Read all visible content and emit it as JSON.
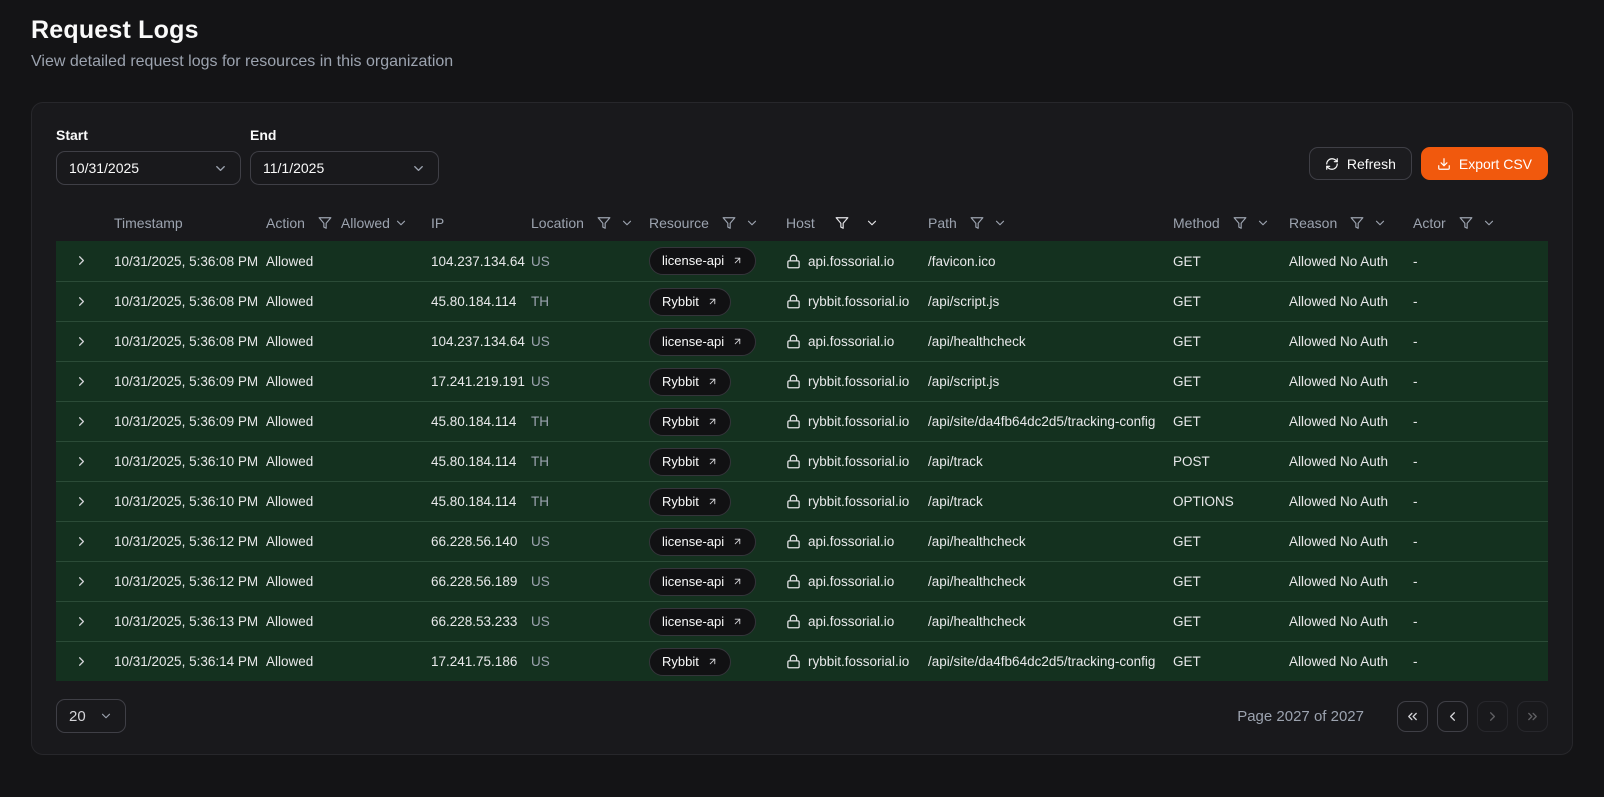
{
  "page": {
    "title": "Request Logs",
    "subtitle": "View detailed request logs for resources in this organization"
  },
  "filters": {
    "start": {
      "label": "Start",
      "value": "10/31/2025"
    },
    "end": {
      "label": "End",
      "value": "11/1/2025"
    }
  },
  "actions": {
    "refresh_label": "Refresh",
    "export_label": "Export CSV"
  },
  "table": {
    "columns": [
      {
        "key": "timestamp",
        "label": "Timestamp",
        "filterable": false
      },
      {
        "key": "action",
        "label": "Action",
        "filterable": true,
        "filter_value": "Allowed"
      },
      {
        "key": "ip",
        "label": "IP",
        "filterable": false
      },
      {
        "key": "location",
        "label": "Location",
        "filterable": true
      },
      {
        "key": "resource",
        "label": "Resource",
        "filterable": true
      },
      {
        "key": "host",
        "label": "Host",
        "filterable": true
      },
      {
        "key": "path",
        "label": "Path",
        "filterable": true
      },
      {
        "key": "method",
        "label": "Method",
        "filterable": true
      },
      {
        "key": "reason",
        "label": "Reason",
        "filterable": true
      },
      {
        "key": "actor",
        "label": "Actor",
        "filterable": true
      }
    ],
    "rows": [
      {
        "timestamp": "10/31/2025, 5:36:08 PM",
        "action": "Allowed",
        "ip": "104.237.134.64",
        "location": "US",
        "resource": "license-api",
        "host": "api.fossorial.io",
        "path": "/favicon.ico",
        "method": "GET",
        "reason": "Allowed No Auth",
        "actor": "-"
      },
      {
        "timestamp": "10/31/2025, 5:36:08 PM",
        "action": "Allowed",
        "ip": "45.80.184.114",
        "location": "TH",
        "resource": "Rybbit",
        "host": "rybbit.fossorial.io",
        "path": "/api/script.js",
        "method": "GET",
        "reason": "Allowed No Auth",
        "actor": "-"
      },
      {
        "timestamp": "10/31/2025, 5:36:08 PM",
        "action": "Allowed",
        "ip": "104.237.134.64",
        "location": "US",
        "resource": "license-api",
        "host": "api.fossorial.io",
        "path": "/api/healthcheck",
        "method": "GET",
        "reason": "Allowed No Auth",
        "actor": "-"
      },
      {
        "timestamp": "10/31/2025, 5:36:09 PM",
        "action": "Allowed",
        "ip": "17.241.219.191",
        "location": "US",
        "resource": "Rybbit",
        "host": "rybbit.fossorial.io",
        "path": "/api/script.js",
        "method": "GET",
        "reason": "Allowed No Auth",
        "actor": "-"
      },
      {
        "timestamp": "10/31/2025, 5:36:09 PM",
        "action": "Allowed",
        "ip": "45.80.184.114",
        "location": "TH",
        "resource": "Rybbit",
        "host": "rybbit.fossorial.io",
        "path": "/api/site/da4fb64dc2d5/tracking-config",
        "method": "GET",
        "reason": "Allowed No Auth",
        "actor": "-"
      },
      {
        "timestamp": "10/31/2025, 5:36:10 PM",
        "action": "Allowed",
        "ip": "45.80.184.114",
        "location": "TH",
        "resource": "Rybbit",
        "host": "rybbit.fossorial.io",
        "path": "/api/track",
        "method": "POST",
        "reason": "Allowed No Auth",
        "actor": "-"
      },
      {
        "timestamp": "10/31/2025, 5:36:10 PM",
        "action": "Allowed",
        "ip": "45.80.184.114",
        "location": "TH",
        "resource": "Rybbit",
        "host": "rybbit.fossorial.io",
        "path": "/api/track",
        "method": "OPTIONS",
        "reason": "Allowed No Auth",
        "actor": "-"
      },
      {
        "timestamp": "10/31/2025, 5:36:12 PM",
        "action": "Allowed",
        "ip": "66.228.56.140",
        "location": "US",
        "resource": "license-api",
        "host": "api.fossorial.io",
        "path": "/api/healthcheck",
        "method": "GET",
        "reason": "Allowed No Auth",
        "actor": "-"
      },
      {
        "timestamp": "10/31/2025, 5:36:12 PM",
        "action": "Allowed",
        "ip": "66.228.56.189",
        "location": "US",
        "resource": "license-api",
        "host": "api.fossorial.io",
        "path": "/api/healthcheck",
        "method": "GET",
        "reason": "Allowed No Auth",
        "actor": "-"
      },
      {
        "timestamp": "10/31/2025, 5:36:13 PM",
        "action": "Allowed",
        "ip": "66.228.53.233",
        "location": "US",
        "resource": "license-api",
        "host": "api.fossorial.io",
        "path": "/api/healthcheck",
        "method": "GET",
        "reason": "Allowed No Auth",
        "actor": "-"
      },
      {
        "timestamp": "10/31/2025, 5:36:14 PM",
        "action": "Allowed",
        "ip": "17.241.75.186",
        "location": "US",
        "resource": "Rybbit",
        "host": "rybbit.fossorial.io",
        "path": "/api/site/da4fb64dc2d5/tracking-config",
        "method": "GET",
        "reason": "Allowed No Auth",
        "actor": "-"
      }
    ]
  },
  "pagination": {
    "page_size": "20",
    "page_info": "Page 2027 of 2027",
    "buttons": [
      {
        "name": "first-page",
        "icon": "chevrons-left",
        "enabled": true
      },
      {
        "name": "previous-page",
        "icon": "chevron-left",
        "enabled": true
      },
      {
        "name": "next-page",
        "icon": "chevron-right",
        "enabled": false
      },
      {
        "name": "last-page",
        "icon": "chevrons-right",
        "enabled": false
      }
    ]
  },
  "colors": {
    "accent": "#f1590d",
    "page_background": "#141416",
    "card_background": "#19191c",
    "row_background": "#14311f",
    "row_separator": "#2b4b37",
    "control_border": "#3f3f46",
    "muted_text": "#9ca3af"
  }
}
